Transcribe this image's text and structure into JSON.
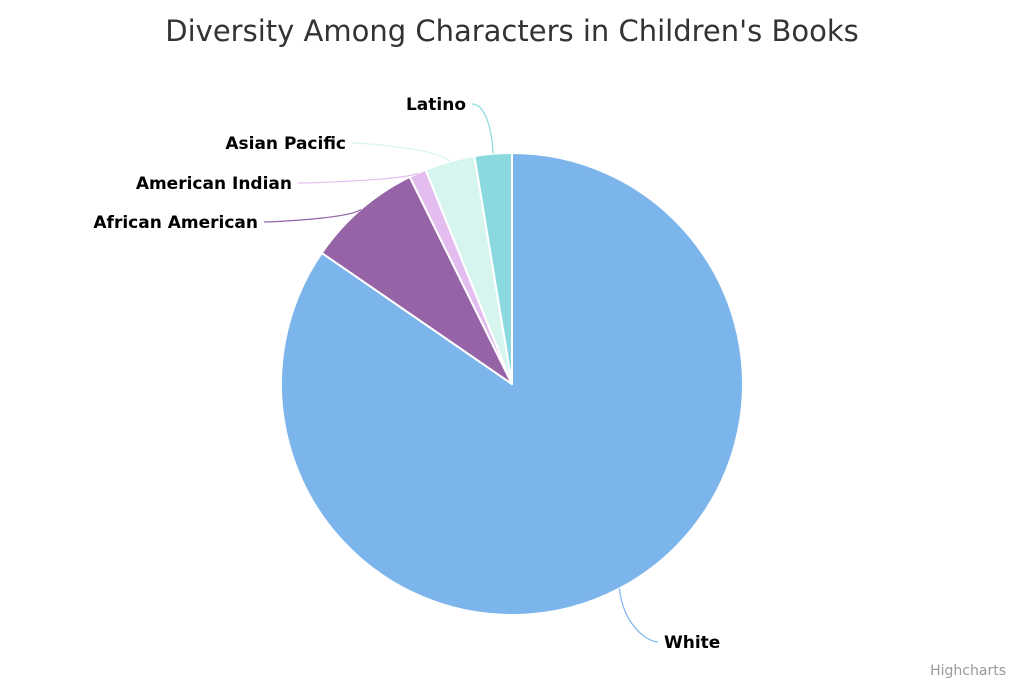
{
  "chart_data": {
    "type": "pie",
    "title": "Diversity Among Characters in Children's Books",
    "slices": [
      {
        "name": "White",
        "value": 84.6,
        "color": "#7cb5ec"
      },
      {
        "name": "African American",
        "value": 8.1,
        "color": "#9563a6"
      },
      {
        "name": "American Indian",
        "value": 1.2,
        "color": "#e4bdf0"
      },
      {
        "name": "Asian Pacific",
        "value": 3.5,
        "color": "#d6f5ef"
      },
      {
        "name": "Latino",
        "value": 2.6,
        "color": "#8ad9df"
      }
    ],
    "start": "12 o'clock",
    "direction": "clockwise",
    "legend": "none",
    "data_labels": "names outside with connectors"
  },
  "credits": "Highcharts"
}
